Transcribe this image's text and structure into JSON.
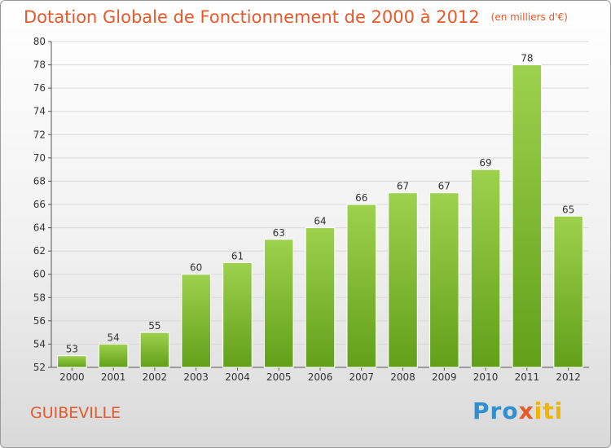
{
  "header": {
    "title": "Dotation Globale de Fonctionnement de 2000 à 2012",
    "unit": "(en milliers d'€)"
  },
  "footer": {
    "commune": "GUIBEVILLE",
    "logo": {
      "p": "Pro",
      "x": "x",
      "rest": "iti"
    }
  },
  "chart_data": {
    "type": "bar",
    "categories": [
      "2000",
      "2001",
      "2002",
      "2003",
      "2004",
      "2005",
      "2006",
      "2007",
      "2008",
      "2009",
      "2010",
      "2011",
      "2012"
    ],
    "values": [
      53,
      54,
      55,
      60,
      61,
      63,
      64,
      66,
      67,
      67,
      69,
      78,
      65
    ],
    "title": "Dotation Globale de Fonctionnement de 2000 à 2012",
    "xlabel": "",
    "ylabel": "",
    "ylim": [
      52,
      80
    ],
    "yticks": [
      52,
      54,
      56,
      58,
      60,
      62,
      64,
      66,
      68,
      70,
      72,
      74,
      76,
      78,
      80
    ],
    "grid": true,
    "legend": "none",
    "colors": {
      "bar_top": "#9dd14e",
      "bar_bottom": "#62a01a",
      "grid": "#d9d9d9",
      "text": "#333333",
      "accent": "#e8582a"
    }
  }
}
